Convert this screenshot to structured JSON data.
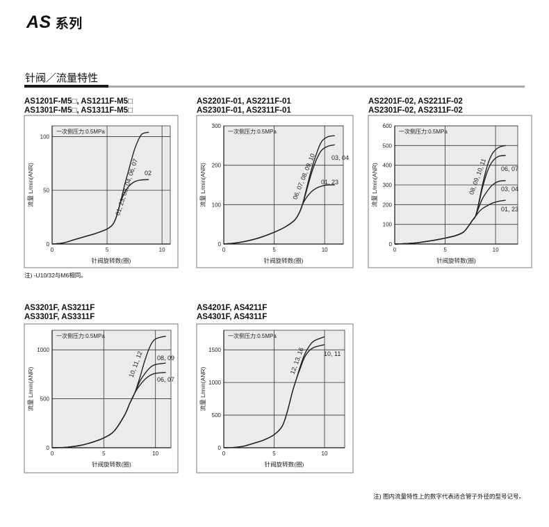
{
  "header": {
    "title_latin": "AS",
    "title_cn": "系列"
  },
  "section": {
    "title": "针阀／流量特性"
  },
  "footnote_m5": "注) -U10/32与M6相同。",
  "footnote_bottom": "注) 图内流量特性上的数字代表适合管子外径的型号记号。",
  "colors": {
    "plot_bg": "#ebebeb",
    "grid": "#333333",
    "curve": "#222222",
    "section_rule_dark": "#1a1a1a",
    "section_rule_grey": "#a8a8a8"
  },
  "chart_data": [
    {
      "type": "line",
      "title_lines": [
        "AS1201F-M5□, AS1211F-M5□",
        "AS1301F-M5□, AS1311F-M5□"
      ],
      "annotation": "一次侧压力:0.5MPa",
      "xlabel": "针阀旋转数(圈)",
      "ylabel": "流量 L/min(ANR)",
      "xlim": [
        0,
        10.75
      ],
      "ylim": [
        0,
        110
      ],
      "xticks": [
        0,
        5,
        10
      ],
      "yticks": [
        0,
        50,
        100
      ],
      "grid": true,
      "series": [
        {
          "name": "01, 23, 03, 04, 06, 07",
          "points": [
            [
              0,
              0
            ],
            [
              1,
              1
            ],
            [
              2,
              4
            ],
            [
              3,
              7
            ],
            [
              4,
              10
            ],
            [
              5,
              14
            ],
            [
              5.5,
              18
            ],
            [
              5.8,
              24
            ],
            [
              6.2,
              38
            ],
            [
              6.6,
              55
            ],
            [
              7,
              70
            ],
            [
              7.5,
              88
            ],
            [
              8,
              100
            ],
            [
              8.3,
              103
            ],
            [
              8.8,
              104
            ]
          ]
        },
        {
          "name": "02",
          "points": [
            [
              0,
              0
            ],
            [
              1,
              1
            ],
            [
              2,
              4
            ],
            [
              3,
              7
            ],
            [
              4,
              10
            ],
            [
              5,
              14
            ],
            [
              5.5,
              18
            ],
            [
              5.8,
              24
            ],
            [
              6.2,
              38
            ],
            [
              6.6,
              48
            ],
            [
              7,
              54
            ],
            [
              7.5,
              58
            ],
            [
              8,
              59.5
            ],
            [
              8.8,
              60
            ]
          ]
        }
      ]
    },
    {
      "type": "line",
      "title_lines": [
        "AS2201F-01, AS2211F-01",
        "AS2301F-01, AS2311F-01"
      ],
      "annotation": "一次侧压力:0.5MPa",
      "xlabel": "针阀旋转数(圈)",
      "ylabel": "流量 L/min(ANR)",
      "xlim": [
        0,
        11.85
      ],
      "ylim": [
        0,
        300
      ],
      "xticks": [
        0,
        5,
        10
      ],
      "yticks": [
        0,
        100,
        200,
        300
      ],
      "grid": true,
      "series": [
        {
          "name": "06, 07, 08, 09, 10",
          "points": [
            [
              0,
              0
            ],
            [
              1,
              2
            ],
            [
              2,
              6
            ],
            [
              3,
              12
            ],
            [
              4,
              20
            ],
            [
              5,
              30
            ],
            [
              6,
              42
            ],
            [
              7,
              60
            ],
            [
              7.5,
              80
            ],
            [
              7.8,
              100
            ],
            [
              8.2,
              140
            ],
            [
              8.7,
              190
            ],
            [
              9.2,
              230
            ],
            [
              9.7,
              260
            ],
            [
              10.3,
              272
            ],
            [
              11,
              275
            ]
          ]
        },
        {
          "name": "03, 04",
          "points": [
            [
              0,
              0
            ],
            [
              1,
              2
            ],
            [
              2,
              6
            ],
            [
              3,
              12
            ],
            [
              4,
              20
            ],
            [
              5,
              30
            ],
            [
              6,
              42
            ],
            [
              7,
              60
            ],
            [
              7.5,
              80
            ],
            [
              7.8,
              100
            ],
            [
              8.2,
              135
            ],
            [
              8.7,
              180
            ],
            [
              9.2,
              215
            ],
            [
              9.7,
              238
            ],
            [
              10.3,
              248
            ],
            [
              11,
              252
            ]
          ]
        },
        {
          "name": "01, 23",
          "points": [
            [
              0,
              0
            ],
            [
              1,
              2
            ],
            [
              2,
              6
            ],
            [
              3,
              12
            ],
            [
              4,
              20
            ],
            [
              5,
              30
            ],
            [
              6,
              42
            ],
            [
              7,
              60
            ],
            [
              7.5,
              80
            ],
            [
              7.8,
              100
            ],
            [
              8.2,
              118
            ],
            [
              8.7,
              133
            ],
            [
              9.2,
              142
            ],
            [
              9.7,
              147
            ],
            [
              10.3,
              150
            ],
            [
              11,
              150
            ]
          ]
        }
      ]
    },
    {
      "type": "line",
      "title_lines": [
        "AS2201F-02, AS2211F-02",
        "AS2301F-02, AS2311F-02"
      ],
      "annotation": "一次侧压力:0.5MPa",
      "xlabel": "针阀旋转数(圈)",
      "ylabel": "流量 L/min(ANR)",
      "xlim": [
        0,
        12.2
      ],
      "ylim": [
        0,
        600
      ],
      "xticks": [
        0,
        5,
        10
      ],
      "yticks": [
        0,
        100,
        200,
        300,
        400,
        500,
        600
      ],
      "grid": true,
      "series": [
        {
          "name": "08, 09, 10, 11",
          "points": [
            [
              0,
              0
            ],
            [
              1,
              2
            ],
            [
              2,
              5
            ],
            [
              3,
              12
            ],
            [
              4,
              20
            ],
            [
              5,
              30
            ],
            [
              6,
              42
            ],
            [
              6.8,
              60
            ],
            [
              7.3,
              90
            ],
            [
              7.7,
              120
            ],
            [
              8,
              140
            ],
            [
              8.3,
              200
            ],
            [
              8.7,
              300
            ],
            [
              9.2,
              400
            ],
            [
              9.7,
              460
            ],
            [
              10.3,
              490
            ],
            [
              11,
              500
            ]
          ]
        },
        {
          "name": "06, 07",
          "points": [
            [
              0,
              0
            ],
            [
              1,
              2
            ],
            [
              2,
              5
            ],
            [
              3,
              12
            ],
            [
              4,
              20
            ],
            [
              5,
              30
            ],
            [
              6,
              42
            ],
            [
              6.8,
              60
            ],
            [
              7.3,
              90
            ],
            [
              7.7,
              120
            ],
            [
              8,
              140
            ],
            [
              8.3,
              195
            ],
            [
              8.7,
              285
            ],
            [
              9.2,
              370
            ],
            [
              9.7,
              420
            ],
            [
              10.3,
              445
            ],
            [
              11,
              450
            ]
          ]
        },
        {
          "name": "03, 04",
          "points": [
            [
              0,
              0
            ],
            [
              1,
              2
            ],
            [
              2,
              5
            ],
            [
              3,
              12
            ],
            [
              4,
              20
            ],
            [
              5,
              30
            ],
            [
              6,
              42
            ],
            [
              6.8,
              60
            ],
            [
              7.3,
              90
            ],
            [
              7.7,
              120
            ],
            [
              8,
              140
            ],
            [
              8.3,
              180
            ],
            [
              8.7,
              230
            ],
            [
              9.2,
              270
            ],
            [
              9.7,
              300
            ],
            [
              10.3,
              318
            ],
            [
              11,
              322
            ]
          ]
        },
        {
          "name": "01, 23",
          "points": [
            [
              0,
              0
            ],
            [
              1,
              2
            ],
            [
              2,
              5
            ],
            [
              3,
              12
            ],
            [
              4,
              20
            ],
            [
              5,
              30
            ],
            [
              6,
              42
            ],
            [
              6.8,
              60
            ],
            [
              7.3,
              90
            ],
            [
              7.7,
              120
            ],
            [
              8,
              140
            ],
            [
              8.3,
              160
            ],
            [
              8.7,
              180
            ],
            [
              9.2,
              195
            ],
            [
              9.7,
              208
            ],
            [
              10.3,
              217
            ],
            [
              11,
              222
            ]
          ]
        }
      ]
    },
    {
      "type": "line",
      "title_lines": [
        "AS3201F, AS3211F",
        "AS3301F, AS3311F"
      ],
      "annotation": "一次侧压力:0.5MPa",
      "xlabel": "针阀旋转数(圈)",
      "ylabel": "流量 L/min(ANR)",
      "xlim": [
        0,
        11.5
      ],
      "ylim": [
        0,
        1200
      ],
      "xticks": [
        0,
        5,
        10
      ],
      "yticks": [
        0,
        500,
        1000
      ],
      "grid": true,
      "series": [
        {
          "name": "10, 11, 12",
          "points": [
            [
              0,
              0
            ],
            [
              1,
              2
            ],
            [
              2,
              12
            ],
            [
              3,
              30
            ],
            [
              4,
              60
            ],
            [
              5,
              100
            ],
            [
              6,
              170
            ],
            [
              7,
              330
            ],
            [
              7.5,
              450
            ],
            [
              8,
              560
            ],
            [
              8.5,
              720
            ],
            [
              9,
              900
            ],
            [
              9.5,
              1040
            ],
            [
              10,
              1110
            ],
            [
              11,
              1140
            ]
          ]
        },
        {
          "name": "08, 09",
          "points": [
            [
              0,
              0
            ],
            [
              1,
              2
            ],
            [
              2,
              12
            ],
            [
              3,
              30
            ],
            [
              4,
              60
            ],
            [
              5,
              100
            ],
            [
              6,
              170
            ],
            [
              7,
              330
            ],
            [
              7.5,
              450
            ],
            [
              8,
              560
            ],
            [
              8.5,
              680
            ],
            [
              9,
              760
            ],
            [
              9.5,
              820
            ],
            [
              10,
              850
            ],
            [
              11,
              865
            ]
          ]
        },
        {
          "name": "06, 07",
          "points": [
            [
              0,
              0
            ],
            [
              1,
              2
            ],
            [
              2,
              12
            ],
            [
              3,
              30
            ],
            [
              4,
              60
            ],
            [
              5,
              100
            ],
            [
              6,
              170
            ],
            [
              7,
              330
            ],
            [
              7.5,
              450
            ],
            [
              8,
              560
            ],
            [
              8.5,
              640
            ],
            [
              9,
              700
            ],
            [
              9.5,
              740
            ],
            [
              10,
              760
            ],
            [
              11,
              770
            ]
          ]
        }
      ]
    },
    {
      "type": "line",
      "title_lines": [
        "AS4201F, AS4211F",
        "AS4301F, AS4311F"
      ],
      "annotation": "一次侧压力:0.5MPa",
      "xlabel": "针阀旋转数(圈)",
      "ylabel": "流量 L/min(ANR)",
      "xlim": [
        0,
        12
      ],
      "ylim": [
        0,
        1800
      ],
      "xticks": [
        0,
        5,
        10
      ],
      "yticks": [
        0,
        500,
        1000,
        1500
      ],
      "grid": true,
      "series": [
        {
          "name": "12, 13, 16",
          "points": [
            [
              0,
              0
            ],
            [
              1,
              5
            ],
            [
              2,
              25
            ],
            [
              3,
              70
            ],
            [
              4,
              120
            ],
            [
              5,
              200
            ],
            [
              5.8,
              330
            ],
            [
              6.3,
              550
            ],
            [
              6.8,
              850
            ],
            [
              7.2,
              1050
            ],
            [
              7.6,
              1250
            ],
            [
              8,
              1420
            ],
            [
              8.5,
              1560
            ],
            [
              9,
              1640
            ],
            [
              10,
              1700
            ]
          ]
        },
        {
          "name": "10, 11",
          "points": [
            [
              0,
              0
            ],
            [
              1,
              5
            ],
            [
              2,
              25
            ],
            [
              3,
              70
            ],
            [
              4,
              120
            ],
            [
              5,
              200
            ],
            [
              5.8,
              330
            ],
            [
              6.3,
              550
            ],
            [
              6.8,
              850
            ],
            [
              7.2,
              1050
            ],
            [
              7.6,
              1220
            ],
            [
              8,
              1380
            ],
            [
              8.5,
              1490
            ],
            [
              9,
              1540
            ],
            [
              10,
              1580
            ]
          ]
        }
      ]
    }
  ]
}
